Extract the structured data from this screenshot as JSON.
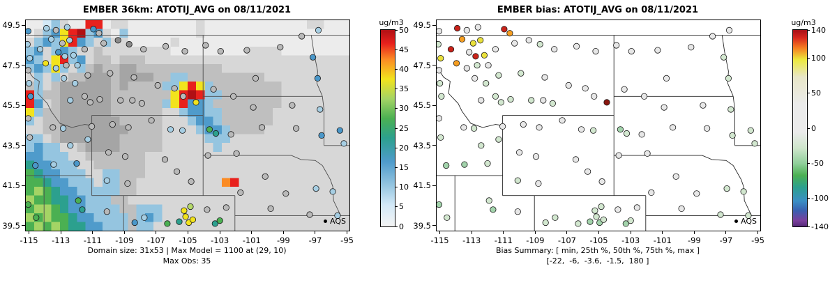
{
  "chart_data": [
    {
      "type": "heatmap",
      "panel": "model",
      "title": "EMBER 36km: ATOTIJ_AVG on 08/11/2021",
      "legend_label": "AQS",
      "caption_line1": "Domain size: 31x53 | Max Model = 1100 at (29, 10)",
      "caption_line2": "Max Obs: 35",
      "domain_size": "31x53",
      "max_model": 1100,
      "max_model_cell": "(29, 10)",
      "max_obs": 35,
      "lon_range": [
        -115.2,
        -94.85
      ],
      "lat_range": [
        39.25,
        49.75
      ],
      "x_tick_labels": [
        "-115",
        "-113",
        "-111",
        "-109",
        "-107",
        "-105",
        "-103",
        "-101",
        "-99",
        "-97",
        "-95"
      ],
      "y_tick_labels": [
        "39.5",
        "41.5",
        "43.5",
        "45.5",
        "47.5",
        "49.5"
      ],
      "colorbar": {
        "label": "ug/m3",
        "range": [
          0,
          50
        ],
        "ticks": [
          "50",
          "45",
          "40",
          "35",
          "30",
          "25",
          "20",
          "15",
          "10",
          "5",
          "0"
        ],
        "gradient": [
          "#b01014 0%",
          "#e8211d 7%",
          "#fb8b24 15%",
          "#f2e31d 25%",
          "#a4d465 35%",
          "#4bb052 45%",
          "#2ca08e 55%",
          "#4f9bcb 67%",
          "#95c5e0 79%",
          "#d3e9f7 89%",
          "#f4f4f4 100%"
        ]
      },
      "boundary_color": "#4d4d4d",
      "site_palette": "palette_model",
      "site_color_index": 2,
      "raster": {
        "cols": 38,
        "rows": 24,
        "cells": [
          "aaLMbaaRRabbaaaaaaaabaaaaaaaaaaaabbaaa",
          "abMNYRrMNbaMaaaaaaaabaaaaaaaaaaaaaaaaa",
          "bMNMYRNMbMbbaaaaabaaaaaaaaaaaaaaaaaaaa",
          "MNbMNMbbcbbbbbbbbaaaaaaaaabbbbaaaaaaaa",
          "NMbYRMNbccbcccbbbbbbbbbbbbbbbbbbbbbbbb",
          "MNMYMbMcdccddccccccccccbbbbbbbbbbbbbbb",
          "bMbMbccdddcddddccMMcccccccccbbbbbbbbbb",
          "cMbcddddddcdccccMMYRYMccccccccbbbbbbbb",
          "RMccddddddcccccccYRrRMMcccccccbbbbbbbb",
          "RNbcddddddccccccMYRNNMccccccccbbbbbbbb",
          "YMccddddddccccccbbMNNMMccccccbbbbbbbbb",
          "MbccdddddddcccccbbbMNNMccccccbbbbbbbbb",
          "bbccddddddddccccbbbbMNNMccccbbbbbbbbbb",
          "MMbcdddddddcccccbbbbbMMMbbbbbbbbbbbbbb",
          "MNMMbbcddddcccccbbbbbbMbbbbbbbbbbbbbbb",
          "NNMMMbbcccccccbbbbbbbbbbbbbbbbbbbbbbbb",
          "TNNMMMbbccccccbbbbbbbbbbbbbbbbbbbbbbbb",
          "GTNNMMMbbMMcccbbbbbbbbbbbbbbbbbbbbbbbb",
          "GGTNNMMMbMMccbbbbbbbbbboRbbbbbbbbbbbbb",
          "GHGTNNMMMMMccbbbbbbbbbbbbbbbbbbbbbbbbb",
          "HGGTTNNMMMccbbbbbbbbbbbbbbbbbbbbbbbbbb",
          "GHHGTNNMMMMccMMMbbbbbbbbbbbbbbbbbbbbbb",
          "HGHGGTNNMMMMcMNMbbbbbbbbbbbbbbbbbbbbbb",
          "GHGHGTTNNMMMcMMbbbbbbbbbbbbbbbbbbbbbbb"
        ]
      }
    },
    {
      "type": "scatter",
      "panel": "bias",
      "title": "EMBER bias: ATOTIJ_AVG on 08/11/2021",
      "legend_label": "AQS",
      "caption_line1": "Bias Summary: [ min, 25th %, 50th %, 75th %, max ]",
      "caption_line2": "[-22,  -6,  -3.6,  -1.5,  180 ]",
      "bias_summary": {
        "min": -22,
        "p25": -6,
        "p50": -3.6,
        "p75": -1.5,
        "max": 180
      },
      "lon_range": [
        -115.2,
        -94.85
      ],
      "lat_range": [
        39.25,
        49.75
      ],
      "x_tick_labels": [
        "-115",
        "-113",
        "-111",
        "-109",
        "-107",
        "-105",
        "-103",
        "-101",
        "-99",
        "-97",
        "-95"
      ],
      "y_tick_labels": [
        "39.5",
        "41.5",
        "43.5",
        "45.5",
        "47.5",
        "49.5"
      ],
      "colorbar": {
        "label": "ug/m3",
        "range": [
          -140,
          140
        ],
        "ticks": [
          "140",
          "100",
          "50",
          "0",
          "-50",
          "-100",
          "-140"
        ],
        "gradient": [
          "#a50f15 0%",
          "#d7261d 4%",
          "#f57b20 9%",
          "#ece83c 15%",
          "#e8e6c8 24%",
          "#ebebeb 38%",
          "#ebebeb 52%",
          "#cfe6cc 60%",
          "#8fcf9a 68%",
          "#4bb052 74%",
          "#2ca08e 80%",
          "#3b8fc4 87%",
          "#3a5fb0 92%",
          "#7b3f9d 97%",
          "#552a78 100%"
        ]
      },
      "boundary_color": "#262626",
      "site_palette": "palette_bias",
      "site_color_index": 3
    }
  ],
  "shared": {
    "palette_raster": {
      "a": "#ececec",
      "b": "#d7d7d7",
      "c": "#bfbfbf",
      "d": "#a5a5a5",
      "e": "#8d8d8d",
      "L": "#d3e9f7",
      "M": "#95c5e0",
      "N": "#4f9bcb",
      "O": "#2473b5",
      "T": "#2ca08e",
      "G": "#4bb052",
      "H": "#a4d465",
      "Y": "#f2e31d",
      "o": "#fb8b24",
      "R": "#e8211d",
      "r": "#b01014"
    },
    "palette_model": {
      "gy": "#b9b9b9",
      "dg": "#8a8a8a",
      "lb": "#a6cee3",
      "bl": "#4a97c9",
      "tl": "#2ca08e",
      "gn": "#4bb052",
      "ygn": "#b5d96a",
      "yl": "#f2e31d"
    },
    "palette_bias": {
      "g0": "#e7e7e7",
      "gn": "#d2e7cf",
      "gn2": "#a2d3ab",
      "tl": "#7fc2b2",
      "yl": "#e9e03c",
      "or": "#f59d20",
      "rd": "#c9231a",
      "dr": "#8a170f"
    },
    "boundaries": [
      [
        [
          -115.6,
          49
        ],
        [
          -94.5,
          49
        ]
      ],
      [
        [
          -115.6,
          47.6
        ],
        [
          -115.2,
          47.4
        ],
        [
          -114.75,
          46.9
        ],
        [
          -114.35,
          46.7
        ],
        [
          -114.45,
          46.1
        ],
        [
          -113.85,
          45.6
        ],
        [
          -113.6,
          45.2
        ],
        [
          -113.05,
          44.6
        ],
        [
          -112.3,
          44.4
        ],
        [
          -111.5,
          44.55
        ],
        [
          -111.05,
          44.5
        ]
      ],
      [
        [
          -111.05,
          45
        ],
        [
          -111.05,
          41
        ]
      ],
      [
        [
          -111.05,
          41
        ],
        [
          -102.05,
          41
        ]
      ],
      [
        [
          -104.05,
          45
        ],
        [
          -104.05,
          41
        ]
      ],
      [
        [
          -111.05,
          45
        ],
        [
          -104.05,
          45
        ]
      ],
      [
        [
          -104.05,
          49
        ],
        [
          -104.05,
          45
        ]
      ],
      [
        [
          -115.6,
          42
        ],
        [
          -111.05,
          42
        ]
      ],
      [
        [
          -114.05,
          42
        ],
        [
          -114.05,
          39.25
        ]
      ],
      [
        [
          -109.05,
          41
        ],
        [
          -109.05,
          39.25
        ]
      ],
      [
        [
          -102.05,
          41
        ],
        [
          -102.05,
          39.25
        ]
      ],
      [
        [
          -102.05,
          40
        ],
        [
          -94.6,
          40
        ]
      ],
      [
        [
          -104.05,
          45.95
        ],
        [
          -96.55,
          45.95
        ]
      ],
      [
        [
          -104.05,
          43
        ],
        [
          -98.5,
          43
        ],
        [
          -97.9,
          42.8
        ],
        [
          -97.0,
          42.75
        ],
        [
          -96.55,
          42.5
        ]
      ],
      [
        [
          -96.55,
          42.5
        ],
        [
          -96.05,
          41.8
        ],
        [
          -95.9,
          41.45
        ],
        [
          -95.85,
          40.75
        ],
        [
          -95.4,
          40.0
        ]
      ],
      [
        [
          -97.25,
          49
        ],
        [
          -97.1,
          48.2
        ],
        [
          -96.85,
          47.2
        ],
        [
          -96.9,
          46.6
        ],
        [
          -96.6,
          46.05
        ],
        [
          -96.55,
          45.95
        ],
        [
          -96.45,
          45.3
        ],
        [
          -96.45,
          43.5
        ]
      ],
      [
        [
          -96.45,
          43.5
        ],
        [
          -94.6,
          43.5
        ]
      ]
    ],
    "sites": [
      [
        -115.05,
        49.2,
        "bl",
        "g0"
      ],
      [
        -115.1,
        48.55,
        "lb",
        "gn"
      ],
      [
        -114.95,
        47.85,
        "lb",
        "yl"
      ],
      [
        -115.05,
        47.25,
        "gy",
        "g0"
      ],
      [
        -115.0,
        46.6,
        "lb",
        "gn"
      ],
      [
        -114.9,
        45.95,
        "bl",
        "gn"
      ],
      [
        -115.05,
        44.85,
        "gy",
        "g0"
      ],
      [
        -114.95,
        43.9,
        "gy",
        "gn"
      ],
      [
        -114.6,
        42.5,
        "bl",
        "gn2"
      ],
      [
        -113.9,
        49.35,
        "lb",
        "rd"
      ],
      [
        -113.3,
        49.25,
        "gy",
        "g0"
      ],
      [
        -112.6,
        49.4,
        "lb",
        "g0"
      ],
      [
        -110.95,
        49.3,
        "bl",
        "rd"
      ],
      [
        -110.6,
        49.1,
        "gy",
        "or"
      ],
      [
        -113.6,
        48.8,
        "lb",
        "or"
      ],
      [
        -112.9,
        48.6,
        "gy",
        "yl"
      ],
      [
        -112.45,
        48.75,
        "lb",
        "yl"
      ],
      [
        -113.15,
        48.15,
        "bl",
        "g0"
      ],
      [
        -112.2,
        48.0,
        "lb",
        "yl"
      ],
      [
        -114.3,
        48.3,
        "lb",
        "rd"
      ],
      [
        -111.5,
        48.3,
        "gy",
        "g0"
      ],
      [
        -113.95,
        47.6,
        "yl",
        "or"
      ],
      [
        -113.3,
        47.35,
        "lb",
        "g0"
      ],
      [
        -112.65,
        47.5,
        "gy",
        "gn"
      ],
      [
        -112.75,
        47.95,
        "lb",
        "rd"
      ],
      [
        -111.95,
        47.5,
        "lb",
        "g0"
      ],
      [
        -111.3,
        47.0,
        "gy",
        "gn"
      ],
      [
        -112.8,
        46.85,
        "lb",
        "g0"
      ],
      [
        -112.1,
        46.6,
        "lb",
        "gn"
      ],
      [
        -111.5,
        45.95,
        "gy",
        "gn"
      ],
      [
        -112.4,
        45.75,
        "lb",
        "g0"
      ],
      [
        -111.15,
        45.65,
        "gy",
        "gn"
      ],
      [
        -110.3,
        48.6,
        "gy",
        "g0"
      ],
      [
        -109.4,
        48.75,
        "dg",
        "g0"
      ],
      [
        -108.7,
        48.55,
        "dg",
        "gn"
      ],
      [
        -107.8,
        48.3,
        "gy",
        "g0"
      ],
      [
        -106.4,
        48.45,
        "gy",
        "g0"
      ],
      [
        -105.2,
        48.2,
        "gy",
        "g0"
      ],
      [
        -103.9,
        48.5,
        "gy",
        "g0"
      ],
      [
        -109.9,
        47.1,
        "gy",
        "gn"
      ],
      [
        -108.4,
        46.9,
        "gy",
        "g0"
      ],
      [
        -106.9,
        46.5,
        "gy",
        "g0"
      ],
      [
        -105.85,
        46.35,
        "gy",
        "g0"
      ],
      [
        -110.55,
        45.8,
        "gy",
        "gn"
      ],
      [
        -109.25,
        45.75,
        "gy",
        "gn"
      ],
      [
        -108.5,
        45.75,
        "gy",
        "g0"
      ],
      [
        -107.9,
        45.6,
        "gy",
        "gn"
      ],
      [
        -104.5,
        45.65,
        "yl",
        "dr"
      ],
      [
        -105.3,
        45.95,
        "gy",
        "g0"
      ],
      [
        -113.5,
        44.4,
        "gy",
        "g0"
      ],
      [
        -112.85,
        44.35,
        "lb",
        "gn"
      ],
      [
        -111.3,
        43.8,
        "lb",
        "gn"
      ],
      [
        -111.05,
        44.45,
        "gy",
        "g0"
      ],
      [
        -112.4,
        43.5,
        "lb",
        "gn"
      ],
      [
        -113.45,
        42.55,
        "lb",
        "gn2"
      ],
      [
        -112.0,
        42.6,
        "bl",
        "gn"
      ],
      [
        -109.75,
        44.55,
        "gy",
        "g0"
      ],
      [
        -108.75,
        44.4,
        "gy",
        "g0"
      ],
      [
        -107.3,
        44.75,
        "gy",
        "g0"
      ],
      [
        -106.1,
        44.3,
        "lb",
        "g0"
      ],
      [
        -105.35,
        44.25,
        "lb",
        "gn"
      ],
      [
        -110.0,
        43.15,
        "gy",
        "g0"
      ],
      [
        -108.95,
        42.95,
        "gy",
        "g0"
      ],
      [
        -106.45,
        42.8,
        "gy",
        "g0"
      ],
      [
        -105.7,
        42.2,
        "gy",
        "g0"
      ],
      [
        -104.8,
        41.7,
        "gy",
        "g0"
      ],
      [
        -110.1,
        41.75,
        "lb",
        "gn"
      ],
      [
        -108.8,
        41.6,
        "gy",
        "g0"
      ],
      [
        -103.65,
        44.3,
        "gn",
        "gn2"
      ],
      [
        -103.25,
        44.1,
        "tl",
        "gn"
      ],
      [
        -102.3,
        44.05,
        "gy",
        "g0"
      ],
      [
        -111.9,
        40.75,
        "gn",
        "gn"
      ],
      [
        -111.65,
        40.3,
        "tl",
        "gn2"
      ],
      [
        -110.1,
        40.2,
        "gy",
        "g0"
      ],
      [
        -108.35,
        39.65,
        "bl",
        "gn"
      ],
      [
        -107.75,
        39.9,
        "lb",
        "gn"
      ],
      [
        -106.3,
        39.6,
        "gn",
        "gn"
      ],
      [
        -105.55,
        39.7,
        "tl",
        "gn2"
      ],
      [
        -105.15,
        39.95,
        "yl",
        "gn"
      ],
      [
        -104.95,
        39.65,
        "yl",
        "gn2"
      ],
      [
        -104.7,
        39.8,
        "yl",
        "gn"
      ],
      [
        -105.25,
        40.25,
        "yl",
        "gn"
      ],
      [
        -104.85,
        40.45,
        "ygn",
        "gn"
      ],
      [
        -103.8,
        40.3,
        "gy",
        "g0"
      ],
      [
        -103.3,
        39.6,
        "tl",
        "gn2"
      ],
      [
        -103.0,
        39.75,
        "gn",
        "gn"
      ],
      [
        -115.05,
        40.55,
        "gn",
        "gn2"
      ],
      [
        -114.55,
        39.9,
        "gn",
        "gn"
      ],
      [
        -102.95,
        48.2,
        "gy",
        "g0"
      ],
      [
        -101.3,
        48.25,
        "gy",
        "g0"
      ],
      [
        -99.2,
        48.4,
        "gy",
        "g0"
      ],
      [
        -97.85,
        48.95,
        "gy",
        "g0"
      ],
      [
        -96.8,
        49.25,
        "lb",
        "g0"
      ],
      [
        -100.75,
        46.85,
        "gy",
        "g0"
      ],
      [
        -97.15,
        47.9,
        "bl",
        "gn"
      ],
      [
        -96.85,
        46.85,
        "bl",
        "gn"
      ],
      [
        -98.45,
        45.5,
        "gy",
        "g0"
      ],
      [
        -96.7,
        45.3,
        "lb",
        "gn"
      ],
      [
        -103.4,
        46.3,
        "gy",
        "g0"
      ],
      [
        -102.15,
        45.95,
        "gy",
        "g0"
      ],
      [
        -100.9,
        45.4,
        "gy",
        "g0"
      ],
      [
        -100.35,
        44.4,
        "gy",
        "g0"
      ],
      [
        -98.2,
        44.35,
        "gy",
        "g0"
      ],
      [
        -96.6,
        44.0,
        "bl",
        "gn"
      ],
      [
        -95.45,
        44.25,
        "bl",
        "gn"
      ],
      [
        -95.2,
        43.6,
        "lb",
        "gn"
      ],
      [
        -103.75,
        43.0,
        "gy",
        "g0"
      ],
      [
        -101.95,
        43.1,
        "gy",
        "g0"
      ],
      [
        -100.15,
        41.95,
        "gy",
        "g0"
      ],
      [
        -98.85,
        41.1,
        "gy",
        "g0"
      ],
      [
        -96.95,
        41.35,
        "lb",
        "gn"
      ],
      [
        -95.9,
        41.2,
        "lb",
        "gn"
      ],
      [
        -97.35,
        40.05,
        "gy",
        "gn"
      ],
      [
        -95.6,
        40.0,
        "lb",
        "gn"
      ],
      [
        -99.8,
        40.35,
        "gy",
        "g0"
      ],
      [
        -102.6,
        40.4,
        "gy",
        "g0"
      ],
      [
        -101.7,
        41.15,
        "gy",
        "g0"
      ]
    ]
  }
}
